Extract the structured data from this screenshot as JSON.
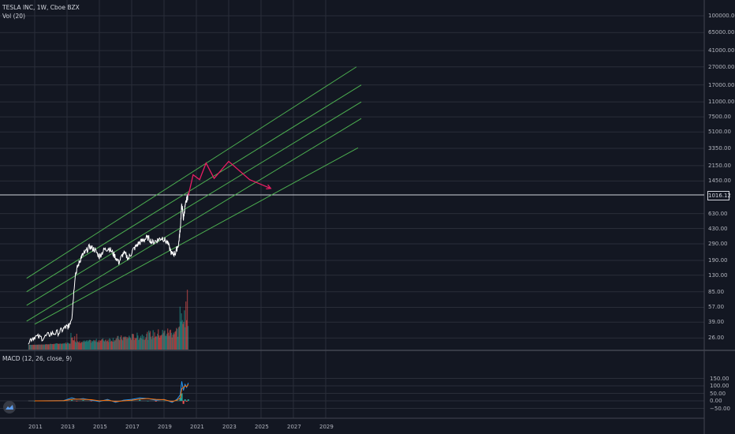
{
  "header": {
    "title": "TESLA INC, 1W, Cboe BZX",
    "volume_label": "Vol (20)"
  },
  "macd": {
    "label": "MACD (12, 26, close, 9)"
  },
  "colors": {
    "background": "#131722",
    "grid": "#2a2e39",
    "channel": "#4caf50",
    "projection": "#e91e63",
    "price": "#ffffff",
    "vol_up": "#26a69a",
    "vol_down": "#ef5350"
  },
  "chart_data": {
    "type": "line",
    "title": "TESLA INC, 1W, Cboe BZX",
    "y_scale": "log",
    "price_ticks": [
      "100000.00",
      "65000.00",
      "41000.00",
      "27000.00",
      "17000.00",
      "11000.00",
      "7500.00",
      "5100.00",
      "3350.00",
      "2150.00",
      "1450.00",
      "1016.12",
      "630.00",
      "430.00",
      "290.00",
      "190.00",
      "130.00",
      "85.00",
      "57.00",
      "39.00",
      "26.00"
    ],
    "current_price": "1016.12",
    "x_ticks": [
      "2011",
      "2013",
      "2015",
      "2017",
      "2019",
      "2021",
      "2023",
      "2025",
      "2027",
      "2029"
    ],
    "price_series": {
      "x": [
        2010.6,
        2011.0,
        2011.5,
        2012.0,
        2012.5,
        2012.9,
        2013.1,
        2013.3,
        2013.5,
        2013.7,
        2013.9,
        2014.1,
        2014.4,
        2014.7,
        2015.0,
        2015.3,
        2015.6,
        2015.9,
        2016.2,
        2016.5,
        2016.8,
        2017.1,
        2017.4,
        2017.7,
        2018.0,
        2018.3,
        2018.6,
        2018.9,
        2019.2,
        2019.5,
        2019.7,
        2019.9,
        2020.0,
        2020.1,
        2020.2,
        2020.3,
        2020.4,
        2020.5
      ],
      "y": [
        24,
        27,
        26,
        29,
        30,
        34,
        35,
        45,
        130,
        170,
        210,
        230,
        270,
        250,
        210,
        250,
        260,
        220,
        180,
        230,
        200,
        250,
        290,
        320,
        340,
        300,
        320,
        340,
        300,
        220,
        230,
        290,
        420,
        800,
        550,
        750,
        900,
        1016
      ]
    },
    "channel_lines": [
      {
        "x": [
          2010.5,
          2030.9
        ],
        "y": [
          120,
          27000
        ]
      },
      {
        "x": [
          2010.5,
          2031.2
        ],
        "y": [
          85,
          17000
        ]
      },
      {
        "x": [
          2010.5,
          2031.2
        ],
        "y": [
          60,
          11000
        ]
      },
      {
        "x": [
          2010.5,
          2031.2
        ],
        "y": [
          40,
          7200
        ]
      },
      {
        "x": [
          2011.0,
          2031.0
        ],
        "y": [
          37,
          3400
        ]
      }
    ],
    "projection": {
      "x": [
        2020.5,
        2020.8,
        2021.2,
        2021.6,
        2022.1,
        2023.0,
        2024.3,
        2025.6
      ],
      "y": [
        1000,
        1700,
        1500,
        2300,
        1550,
        2400,
        1500,
        1200
      ]
    },
    "volume_bars": "weekly volume histogram, rising sharply into 2020",
    "macd_series": {
      "x": [
        2011.0,
        2012.0,
        2012.8,
        2013.3,
        2013.6,
        2014.0,
        2014.5,
        2015.0,
        2015.5,
        2016.0,
        2016.5,
        2017.0,
        2017.5,
        2018.0,
        2018.5,
        2019.0,
        2019.5,
        2019.8,
        2020.0,
        2020.1,
        2020.2,
        2020.3,
        2020.4,
        2020.5
      ],
      "macd": [
        0,
        1,
        2,
        20,
        10,
        15,
        5,
        -5,
        10,
        -10,
        5,
        10,
        20,
        15,
        5,
        10,
        -10,
        10,
        40,
        130,
        70,
        110,
        90,
        120
      ],
      "signal": [
        0,
        0,
        1,
        10,
        12,
        10,
        8,
        0,
        5,
        -5,
        0,
        5,
        12,
        15,
        10,
        8,
        -5,
        5,
        20,
        80,
        90,
        100,
        95,
        110
      ]
    },
    "macd_ticks": [
      "150.00",
      "100.00",
      "50.00",
      "0.00",
      "−50.00"
    ]
  }
}
